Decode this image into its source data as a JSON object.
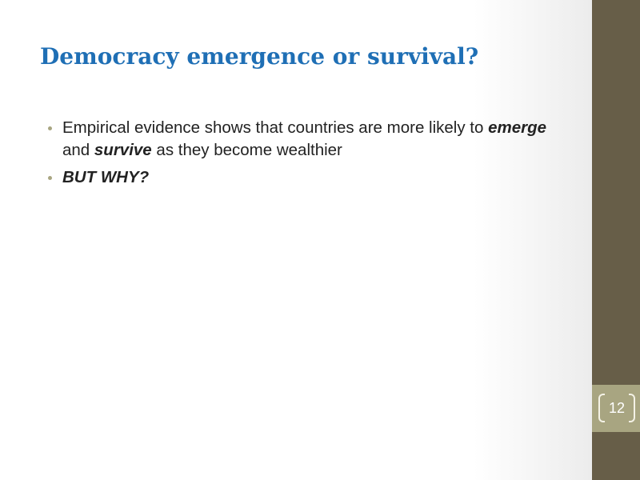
{
  "slide": {
    "title": "Democracy emergence or survival?",
    "bullets": [
      {
        "parts": [
          "Empirical evidence shows that countries are more likely to ",
          "emerge",
          " and ",
          "survive",
          " as they become wealthier"
        ]
      },
      {
        "text": "BUT WHY?"
      }
    ],
    "page_number": "12"
  },
  "colors": {
    "title": "#1f6fb5",
    "sidebar": "#675e48",
    "band": "#a8a581",
    "bullet": "#a8a581"
  }
}
